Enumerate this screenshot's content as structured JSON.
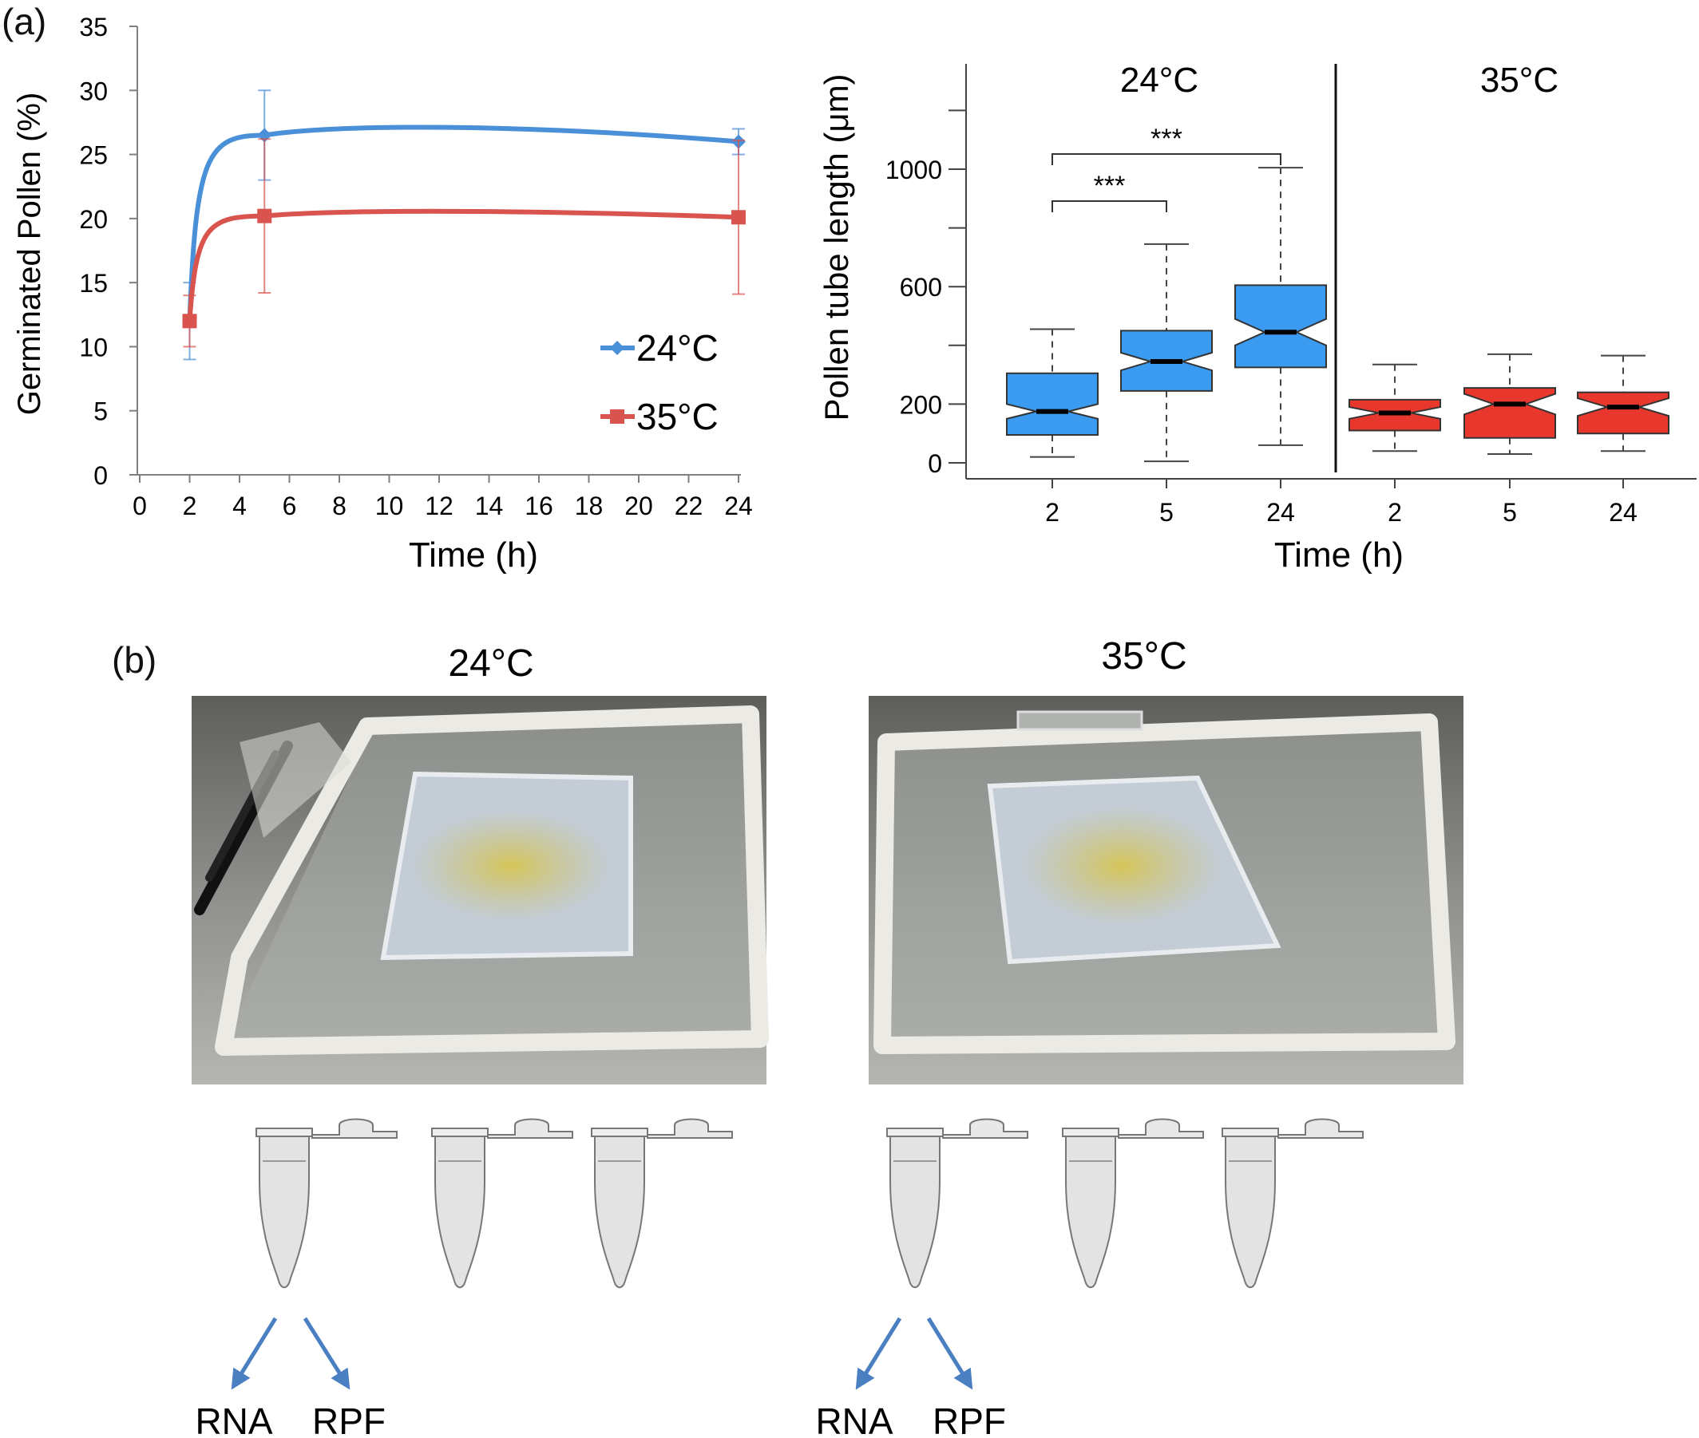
{
  "panel_a": {
    "label": "(a)",
    "line_chart": {
      "ylabel": "Germinated Pollen (%)",
      "xlabel": "Time (h)",
      "x_ticks": [
        "0",
        "2",
        "4",
        "6",
        "8",
        "10",
        "12",
        "14",
        "16",
        "18",
        "20",
        "22",
        "24"
      ],
      "y_ticks": [
        "0",
        "5",
        "10",
        "15",
        "20",
        "25",
        "30",
        "35"
      ]
    },
    "box_chart": {
      "ylabel": "Pollen tube length (μm)",
      "xlabel": "Time (h)",
      "group_titles": [
        "24°C",
        "35°C"
      ],
      "y_ticks": [
        "0",
        "200",
        "600",
        "1000"
      ],
      "significance": [
        "***",
        "***"
      ]
    }
  },
  "panel_b": {
    "label": "(b)",
    "photo_titles": [
      "24°C",
      "35°C"
    ],
    "outputs": [
      "RNA",
      "RPF",
      "RNA",
      "RPF"
    ]
  },
  "chart_data": [
    {
      "type": "line",
      "xlabel": "Time (h)",
      "ylabel": "Germinated Pollen (%)",
      "xlim": [
        0,
        24
      ],
      "ylim": [
        0,
        35
      ],
      "x": [
        2,
        5,
        24
      ],
      "series": [
        {
          "name": "24°C",
          "color": "#4a90d9",
          "values": [
            12,
            26.5,
            26
          ],
          "err": [
            3,
            3.5,
            1
          ]
        },
        {
          "name": "35°C",
          "color": "#d9534f",
          "values": [
            12,
            20.2,
            20.1
          ],
          "err": [
            2,
            6,
            6
          ]
        }
      ],
      "legend": "bottom-right",
      "grid": false
    },
    {
      "type": "box",
      "xlabel": "Time (h)",
      "ylabel": "Pollen tube length (μm)",
      "ylim": [
        0,
        1200
      ],
      "categories": [
        "2",
        "5",
        "24",
        "2",
        "5",
        "24"
      ],
      "groups": [
        "24°C",
        "24°C",
        "24°C",
        "35°C",
        "35°C",
        "35°C"
      ],
      "boxes": [
        {
          "whisker_low": 20,
          "q1": 95,
          "median": 175,
          "q3": 305,
          "whisker_high": 455,
          "notch_low": 150,
          "notch_high": 200,
          "color": "#3a9bf0"
        },
        {
          "whisker_low": 5,
          "q1": 245,
          "median": 345,
          "q3": 450,
          "whisker_high": 745,
          "notch_low": 315,
          "notch_high": 375,
          "color": "#3a9bf0"
        },
        {
          "whisker_low": 60,
          "q1": 325,
          "median": 445,
          "q3": 605,
          "whisker_high": 1005,
          "notch_low": 400,
          "notch_high": 490,
          "color": "#3a9bf0"
        },
        {
          "whisker_low": 40,
          "q1": 110,
          "median": 170,
          "q3": 215,
          "whisker_high": 335,
          "notch_low": 150,
          "notch_high": 190,
          "color": "#e8382e"
        },
        {
          "whisker_low": 30,
          "q1": 85,
          "median": 200,
          "q3": 255,
          "whisker_high": 370,
          "notch_low": 165,
          "notch_high": 235,
          "color": "#e8382e"
        },
        {
          "whisker_low": 40,
          "q1": 100,
          "median": 190,
          "q3": 240,
          "whisker_high": 365,
          "notch_low": 160,
          "notch_high": 220,
          "color": "#e8382e"
        }
      ],
      "significance": [
        {
          "from": 0,
          "to": 1,
          "label": "***"
        },
        {
          "from": 0,
          "to": 2,
          "label": "***"
        }
      ]
    }
  ]
}
